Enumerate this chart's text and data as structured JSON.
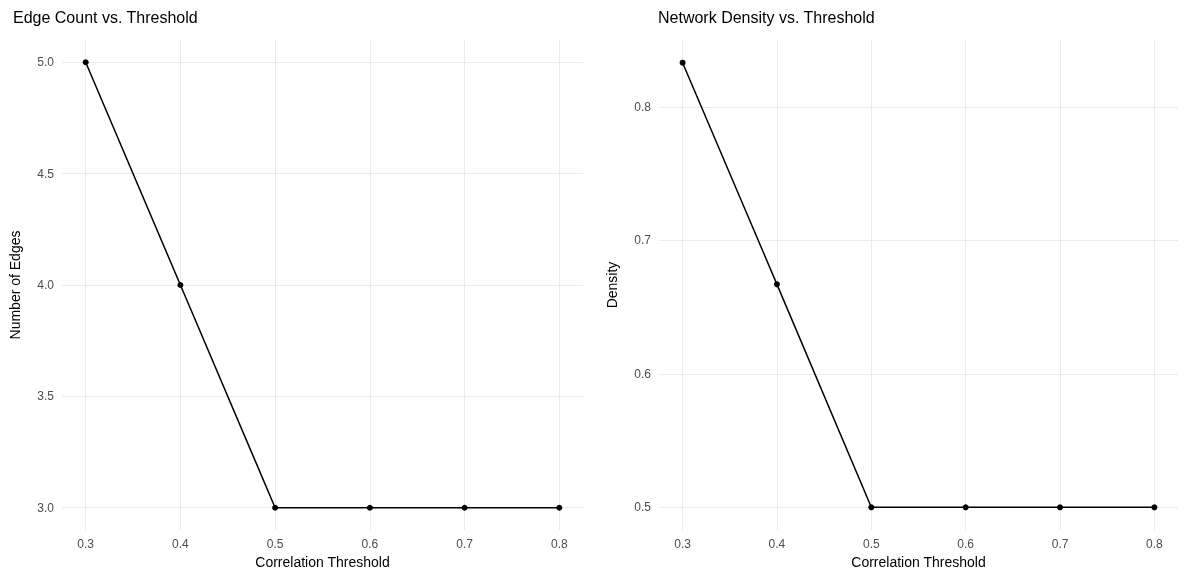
{
  "chart_data": [
    {
      "type": "line",
      "title": "Edge Count vs. Threshold",
      "xlabel": "Correlation Threshold",
      "ylabel": "Number of Edges",
      "x": [
        0.3,
        0.4,
        0.5,
        0.6,
        0.7,
        0.8
      ],
      "series": [
        {
          "color": "#000000",
          "values": [
            5,
            4,
            3,
            3,
            3,
            3
          ]
        }
      ],
      "xlim": [
        0.275,
        0.825
      ],
      "xticks": [
        0.3,
        0.4,
        0.5,
        0.6,
        0.7,
        0.8
      ],
      "ylim": [
        2.9,
        5.1
      ],
      "yticks": [
        {
          "value": 3,
          "label": "3.0"
        },
        3.5,
        {
          "value": 4,
          "label": "4.0"
        },
        4.5,
        {
          "value": 5,
          "label": "5.0"
        }
      ],
      "grid": true,
      "marker": "circle",
      "line_style": "solid"
    },
    {
      "type": "line",
      "title": "Network Density vs. Threshold",
      "xlabel": "Correlation Threshold",
      "ylabel": "Density",
      "x": [
        0.3,
        0.4,
        0.5,
        0.6,
        0.7,
        0.8
      ],
      "series": [
        {
          "color": "#000000",
          "values": [
            0.833,
            0.667,
            0.5,
            0.5,
            0.5,
            0.5
          ]
        }
      ],
      "xlim": [
        0.275,
        0.825
      ],
      "xticks": [
        0.3,
        0.4,
        0.5,
        0.6,
        0.7,
        0.8
      ],
      "ylim": [
        0.483,
        0.85
      ],
      "yticks": [
        0.5,
        0.6,
        0.7,
        0.8
      ],
      "grid": true,
      "marker": "circle",
      "line_style": "solid"
    }
  ]
}
